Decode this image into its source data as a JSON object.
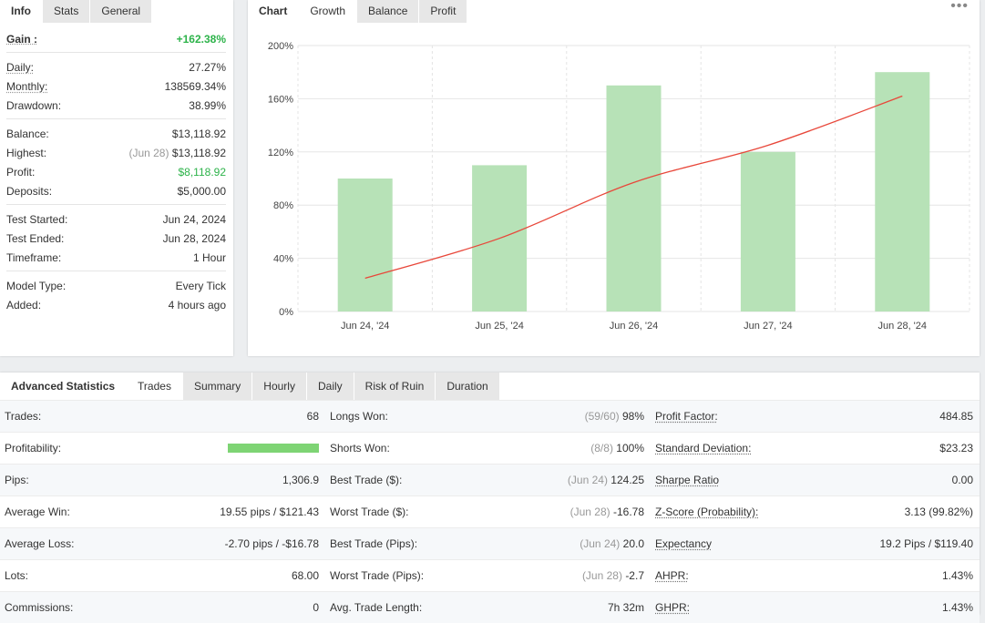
{
  "info": {
    "tabs": [
      "Info",
      "Stats",
      "General"
    ],
    "gain": {
      "label": "Gain :",
      "value": "+162.38%"
    },
    "daily": {
      "label": "Daily:",
      "value": "27.27%"
    },
    "monthly": {
      "label": "Monthly:",
      "value": "138569.34%"
    },
    "drawdown": {
      "label": "Drawdown:",
      "value": "38.99%"
    },
    "balance": {
      "label": "Balance:",
      "value": "$13,118.92"
    },
    "highest": {
      "label": "Highest:",
      "date": "(Jun 28)",
      "value": "$13,118.92"
    },
    "profit": {
      "label": "Profit:",
      "value": "$8,118.92"
    },
    "deposits": {
      "label": "Deposits:",
      "value": "$5,000.00"
    },
    "test_started": {
      "label": "Test Started:",
      "value": "Jun 24, 2024"
    },
    "test_ended": {
      "label": "Test Ended:",
      "value": "Jun 28, 2024"
    },
    "timeframe": {
      "label": "Timeframe:",
      "value": "1 Hour"
    },
    "model_type": {
      "label": "Model Type:",
      "value": "Every Tick"
    },
    "added": {
      "label": "Added:",
      "value": "4 hours ago"
    }
  },
  "chart": {
    "tabs": [
      "Chart",
      "Growth",
      "Balance",
      "Profit"
    ],
    "menu": "•••"
  },
  "chart_data": {
    "type": "bar",
    "categories": [
      "Jun 24, '24",
      "Jun 25, '24",
      "Jun 26, '24",
      "Jun 27, '24",
      "Jun 28, '24"
    ],
    "series": [
      {
        "type": "bar",
        "values": [
          100,
          110,
          170,
          120,
          180
        ],
        "color": "#b7e2b7"
      },
      {
        "type": "line",
        "values": [
          25,
          55,
          97,
          125,
          162
        ],
        "color": "#e8473a"
      }
    ],
    "yticks": [
      "0%",
      "40%",
      "80%",
      "120%",
      "160%",
      "200%"
    ],
    "ylim": [
      0,
      200
    ],
    "grid": true
  },
  "stats": {
    "tabs": [
      "Advanced Statistics",
      "Trades",
      "Summary",
      "Hourly",
      "Daily",
      "Risk of Ruin",
      "Duration"
    ],
    "rows": [
      {
        "l1": "Trades:",
        "v1": "68",
        "l2": "Longs Won:",
        "d2": "(59/60)",
        "v2": "98%",
        "l3": "Profit Factor:",
        "v3": "484.85"
      },
      {
        "l1": "Profitability:",
        "v1": "",
        "l2": "Shorts Won:",
        "d2": "(8/8)",
        "v2": "100%",
        "l3": "Standard Deviation:",
        "v3": "$23.23"
      },
      {
        "l1": "Pips:",
        "v1": "1,306.9",
        "l2": "Best Trade ($):",
        "d2": "(Jun 24)",
        "v2": "124.25",
        "l3": "Sharpe Ratio",
        "v3": "0.00"
      },
      {
        "l1": "Average Win:",
        "v1": "19.55 pips / $121.43",
        "l2": "Worst Trade ($):",
        "d2": "(Jun 28)",
        "v2": "-16.78",
        "l3": "Z-Score (Probability):",
        "v3": "3.13 (99.82%)"
      },
      {
        "l1": "Average Loss:",
        "v1": "-2.70 pips / -$16.78",
        "l2": "Best Trade (Pips):",
        "d2": "(Jun 24)",
        "v2": "20.0",
        "l3": "Expectancy",
        "v3": "19.2 Pips / $119.40"
      },
      {
        "l1": "Lots:",
        "v1": "68.00",
        "l2": "Worst Trade (Pips):",
        "d2": "(Jun 28)",
        "v2": "-2.7",
        "l3": "AHPR:",
        "v3": "1.43%"
      },
      {
        "l1": "Commissions:",
        "v1": "0",
        "l2": "Avg. Trade Length:",
        "d2": "",
        "v2": "7h 32m",
        "l3": "GHPR:",
        "v3": "1.43%"
      }
    ],
    "profitability_fraction": 1.0
  }
}
